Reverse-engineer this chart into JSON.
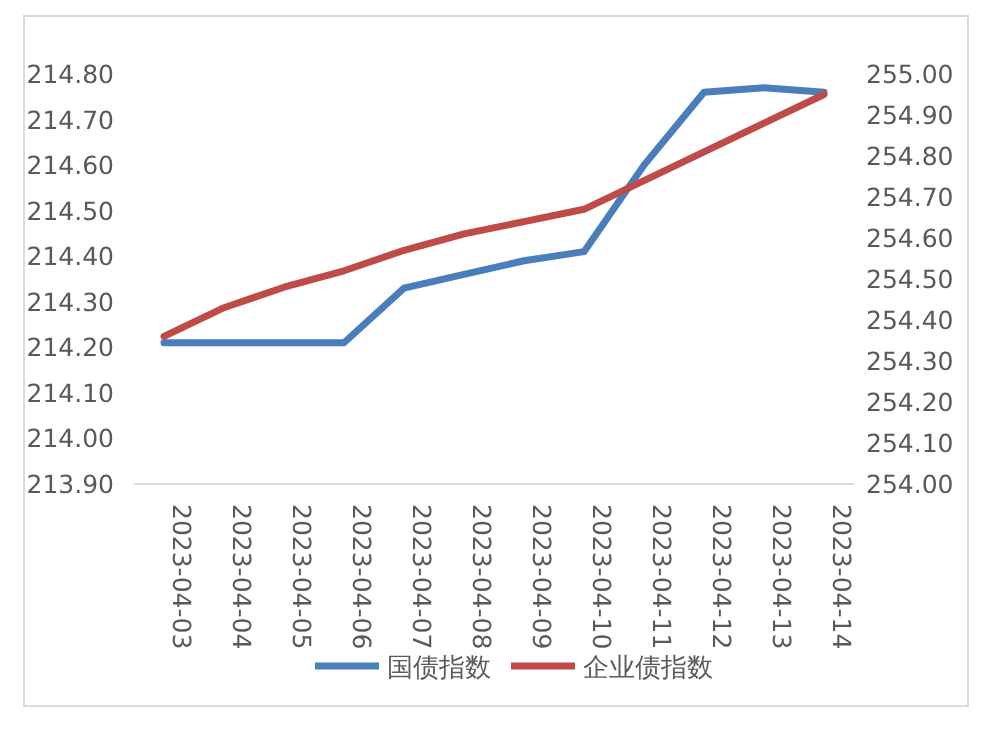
{
  "chart_data": {
    "type": "line",
    "categories": [
      "2023-04-03",
      "2023-04-04",
      "2023-04-05",
      "2023-04-06",
      "2023-04-07",
      "2023-04-08",
      "2023-04-09",
      "2023-04-10",
      "2023-04-11",
      "2023-04-12",
      "2023-04-13",
      "2023-04-14"
    ],
    "series": [
      {
        "name": "国债指数",
        "color": "#4a7ebb",
        "values": [
          214.21,
          214.21,
          214.21,
          214.21,
          214.33,
          214.36,
          214.39,
          214.41,
          214.6,
          214.76,
          214.77,
          214.76
        ]
      },
      {
        "name": "企业债指数",
        "color": "#be4b48",
        "axis": "y2",
        "values": [
          254.36,
          254.43,
          254.48,
          254.52,
          254.57,
          254.61,
          254.64,
          254.67,
          254.74,
          254.81,
          254.88,
          254.95
        ]
      }
    ],
    "ylim": [
      213.9,
      214.8
    ],
    "yticks": [
      {
        "value": 213.9,
        "label": "213.90"
      },
      {
        "value": 214.0,
        "label": "214.00"
      },
      {
        "value": 214.1,
        "label": "214.10"
      },
      {
        "value": 214.2,
        "label": "214.20"
      },
      {
        "value": 214.3,
        "label": "214.30"
      },
      {
        "value": 214.4,
        "label": "214.40"
      },
      {
        "value": 214.5,
        "label": "214.50"
      },
      {
        "value": 214.6,
        "label": "214.60"
      },
      {
        "value": 214.7,
        "label": "214.70"
      },
      {
        "value": 214.8,
        "label": "214.80"
      }
    ],
    "y2lim": [
      254.0,
      255.0
    ],
    "y2ticks": [
      {
        "value": 254.0,
        "label": "254.00"
      },
      {
        "value": 254.1,
        "label": "254.10"
      },
      {
        "value": 254.2,
        "label": "254.20"
      },
      {
        "value": 254.3,
        "label": "254.30"
      },
      {
        "value": 254.4,
        "label": "254.40"
      },
      {
        "value": 254.5,
        "label": "254.50"
      },
      {
        "value": 254.6,
        "label": "254.60"
      },
      {
        "value": 254.7,
        "label": "254.70"
      },
      {
        "value": 254.8,
        "label": "254.80"
      },
      {
        "value": 254.9,
        "label": "254.90"
      },
      {
        "value": 255.0,
        "label": "255.00"
      }
    ],
    "legend": "bottom"
  }
}
